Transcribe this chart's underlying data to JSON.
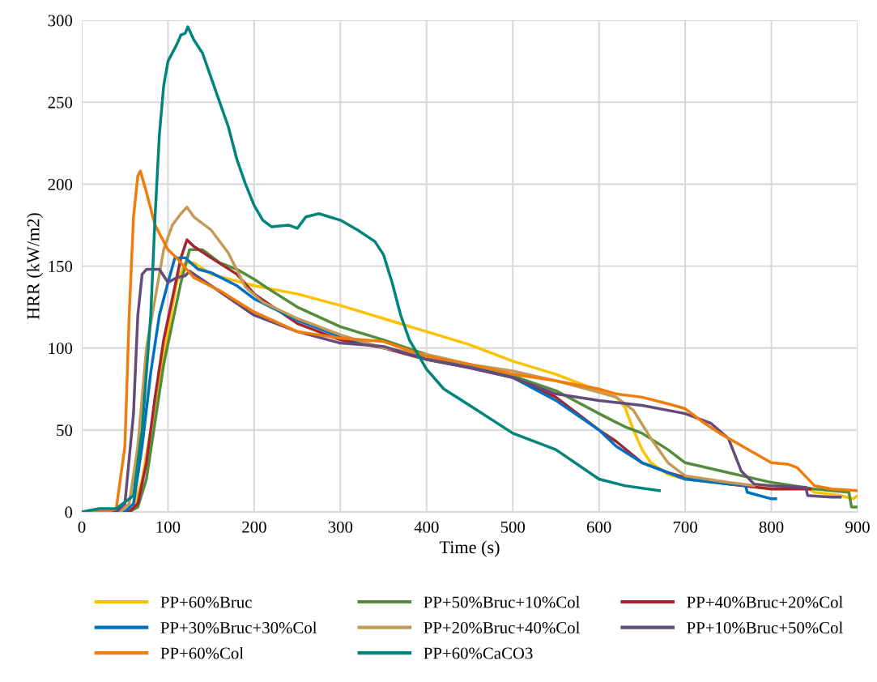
{
  "chart_data": {
    "type": "line",
    "xlabel": "Time (s)",
    "ylabel": "HRR (kW/m2)",
    "xlim": [
      0,
      900
    ],
    "xticks": [
      0,
      100,
      200,
      300,
      400,
      500,
      600,
      700,
      800,
      900
    ],
    "ylim": [
      0,
      300
    ],
    "yticks": [
      0,
      50,
      100,
      150,
      200,
      250,
      300
    ],
    "grid": true,
    "legend": "bottom",
    "marker": "none",
    "line_style": "solid",
    "series": [
      {
        "name": "PP+60%Bruc",
        "color": "#ffc000",
        "x": [
          0,
          50,
          60,
          70,
          80,
          90,
          100,
          110,
          120,
          130,
          150,
          200,
          250,
          300,
          350,
          400,
          450,
          500,
          550,
          600,
          620,
          630,
          640,
          650,
          660,
          680,
          700,
          750,
          800,
          840,
          850,
          880,
          895,
          900
        ],
        "values": [
          0,
          0,
          2,
          20,
          50,
          80,
          110,
          140,
          152,
          152,
          145,
          138,
          133,
          126,
          118,
          110,
          102,
          92,
          84,
          74,
          70,
          64,
          50,
          38,
          30,
          23,
          20,
          17,
          15,
          15,
          12,
          10,
          8,
          10
        ]
      },
      {
        "name": "PP+50%Bruc+10%Col",
        "color": "#548c3c",
        "x": [
          0,
          55,
          65,
          75,
          85,
          95,
          105,
          115,
          125,
          140,
          160,
          180,
          200,
          220,
          250,
          300,
          350,
          400,
          450,
          500,
          550,
          600,
          630,
          650,
          680,
          700,
          750,
          800,
          850,
          890,
          893,
          900
        ],
        "values": [
          0,
          0,
          3,
          20,
          55,
          90,
          115,
          140,
          160,
          160,
          152,
          148,
          142,
          135,
          125,
          113,
          105,
          96,
          90,
          83,
          74,
          60,
          52,
          48,
          38,
          30,
          24,
          18,
          14,
          12,
          3,
          3
        ]
      },
      {
        "name": "PP+40%Bruc+20%Col",
        "color": "#a5262f",
        "x": [
          0,
          55,
          65,
          75,
          85,
          95,
          105,
          115,
          122,
          130,
          150,
          180,
          200,
          250,
          300,
          350,
          400,
          450,
          500,
          550,
          600,
          620,
          650,
          680,
          700,
          750,
          800,
          845
        ],
        "values": [
          0,
          0,
          5,
          30,
          70,
          105,
          130,
          155,
          166,
          162,
          155,
          145,
          133,
          115,
          105,
          100,
          93,
          88,
          82,
          70,
          50,
          43,
          30,
          24,
          21,
          17,
          14,
          14
        ]
      },
      {
        "name": "PP+30%Bruc+30%Col",
        "color": "#0070c0",
        "x": [
          0,
          50,
          60,
          70,
          80,
          90,
          100,
          108,
          120,
          135,
          150,
          180,
          200,
          250,
          300,
          350,
          400,
          450,
          500,
          550,
          600,
          620,
          650,
          680,
          700,
          750,
          770,
          772,
          800,
          805
        ],
        "values": [
          0,
          0,
          5,
          40,
          85,
          120,
          140,
          155,
          155,
          148,
          146,
          138,
          130,
          117,
          107,
          100,
          95,
          89,
          82,
          68,
          50,
          40,
          30,
          24,
          20,
          17,
          16,
          12,
          8,
          8
        ]
      },
      {
        "name": "PP+20%Bruc+40%Col",
        "color": "#c49a56",
        "x": [
          0,
          45,
          55,
          65,
          75,
          85,
          95,
          105,
          115,
          122,
          130,
          150,
          170,
          190,
          210,
          250,
          300,
          350,
          400,
          450,
          500,
          550,
          600,
          620,
          640,
          660,
          680,
          700,
          750,
          780
        ],
        "values": [
          0,
          0,
          5,
          40,
          100,
          130,
          160,
          175,
          182,
          186,
          180,
          172,
          158,
          137,
          128,
          118,
          108,
          100,
          96,
          90,
          86,
          80,
          73,
          70,
          62,
          45,
          30,
          22,
          18,
          16
        ]
      },
      {
        "name": "PP+10%Bruc+50%Col",
        "color": "#634b7a",
        "x": [
          0,
          40,
          50,
          60,
          65,
          70,
          75,
          90,
          100,
          110,
          120,
          125,
          150,
          200,
          250,
          300,
          350,
          400,
          450,
          500,
          550,
          600,
          650,
          700,
          730,
          750,
          765,
          780,
          800,
          840,
          842,
          870,
          880
        ],
        "values": [
          0,
          0,
          5,
          60,
          120,
          145,
          148,
          148,
          140,
          143,
          144,
          147,
          138,
          120,
          110,
          103,
          101,
          93,
          88,
          82,
          72,
          68,
          65,
          60,
          54,
          45,
          25,
          17,
          16,
          15,
          10,
          9,
          9
        ]
      },
      {
        "name": "PP+60%Col",
        "color": "#f07c0c",
        "x": [
          0,
          30,
          40,
          50,
          55,
          60,
          65,
          68,
          75,
          85,
          100,
          110,
          130,
          160,
          200,
          250,
          300,
          350,
          400,
          450,
          500,
          550,
          600,
          620,
          650,
          680,
          700,
          720,
          740,
          760,
          780,
          800,
          820,
          830,
          850,
          870,
          900
        ],
        "values": [
          0,
          0,
          2,
          40,
          120,
          180,
          205,
          208,
          195,
          175,
          160,
          155,
          143,
          135,
          122,
          110,
          106,
          104,
          95,
          90,
          84,
          80,
          75,
          72,
          70,
          66,
          63,
          55,
          48,
          42,
          36,
          30,
          29,
          27,
          16,
          14,
          13
        ]
      },
      {
        "name": "PP+60%CaCO3",
        "color": "#00857c",
        "x": [
          0,
          20,
          40,
          60,
          70,
          80,
          85,
          90,
          95,
          100,
          110,
          115,
          120,
          123,
          130,
          140,
          150,
          160,
          170,
          180,
          190,
          200,
          210,
          220,
          240,
          250,
          260,
          275,
          300,
          320,
          340,
          350,
          360,
          370,
          380,
          400,
          420,
          450,
          500,
          550,
          600,
          630,
          670
        ],
        "values": [
          0,
          2,
          2,
          10,
          50,
          120,
          180,
          230,
          260,
          275,
          285,
          291,
          292,
          296,
          288,
          280,
          265,
          250,
          235,
          215,
          200,
          187,
          178,
          174,
          175,
          173,
          180,
          182,
          178,
          172,
          165,
          157,
          140,
          120,
          105,
          87,
          75,
          65,
          48,
          38,
          20,
          16,
          13
        ]
      }
    ]
  }
}
